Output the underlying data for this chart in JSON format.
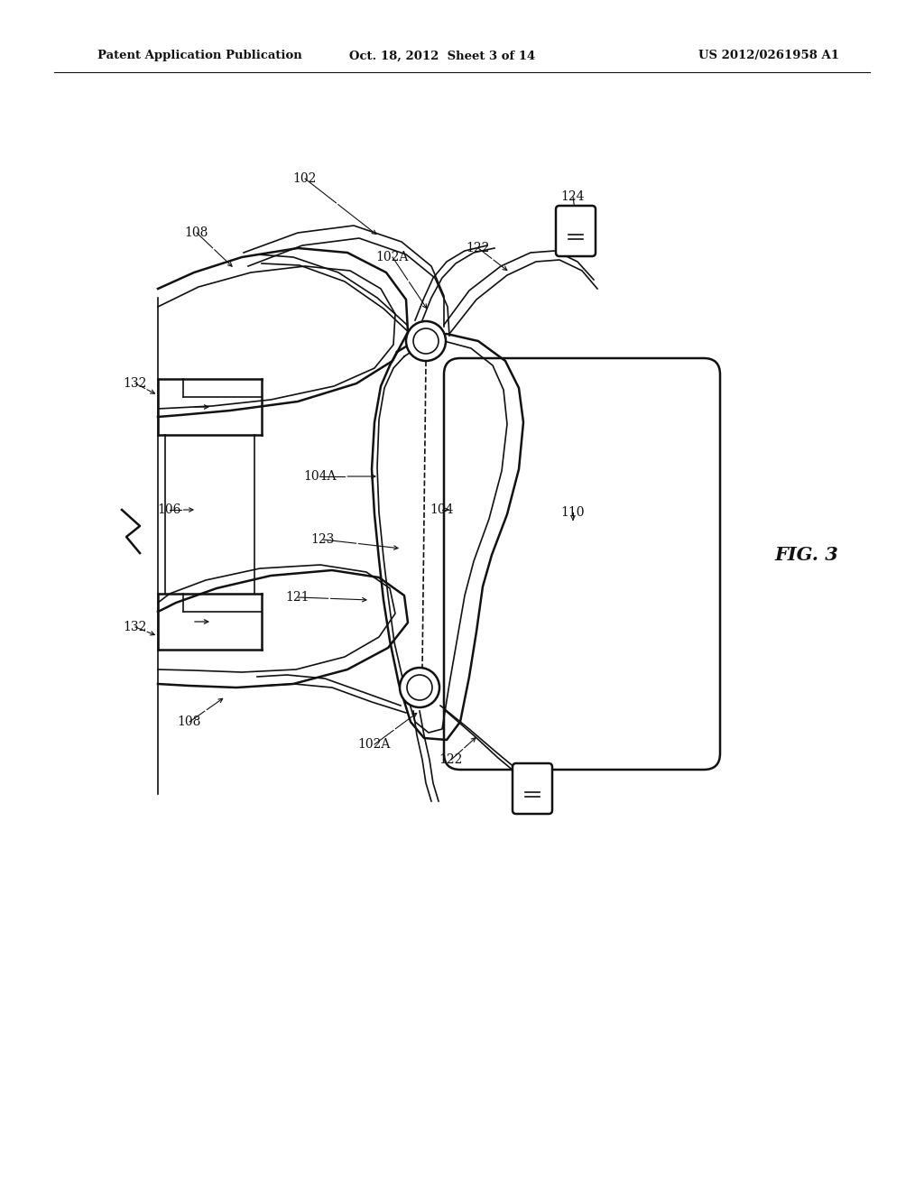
{
  "background_color": "#ffffff",
  "line_color": "#111111",
  "header_left": "Patent Application Publication",
  "header_center": "Oct. 18, 2012  Sheet 3 of 14",
  "header_right": "US 2012/0261958 A1",
  "fig_label": "FIG. 3"
}
